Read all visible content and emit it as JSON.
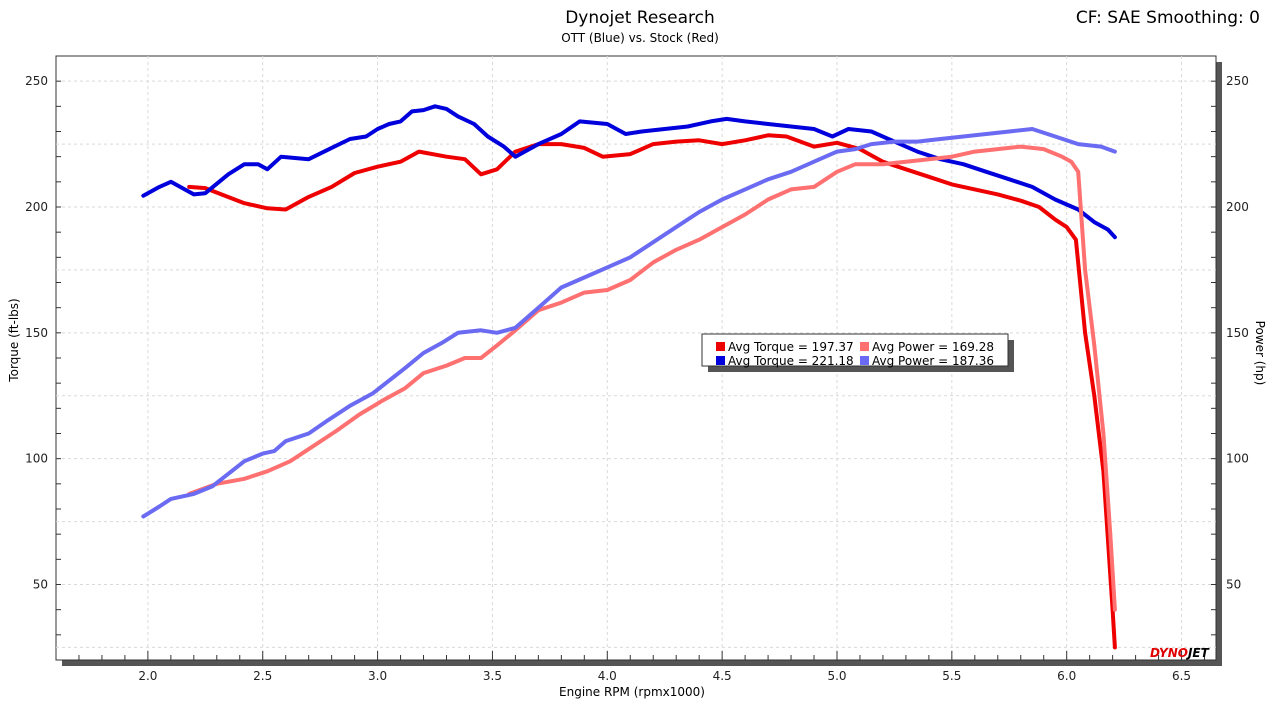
{
  "header": {
    "title": "Dynojet Research",
    "subtitle": "OTT (Blue) vs. Stock (Red)",
    "cf_label": "CF: SAE Smoothing: 0"
  },
  "brand": {
    "dyno": "DYNO",
    "jet": "JET",
    "dyno_color": "#e00000",
    "jet_color": "#000000"
  },
  "chart_data": {
    "type": "line",
    "title": "Dynojet Research",
    "subtitle": "OTT (Blue) vs. Stock (Red)",
    "xlabel": "Engine RPM (rpmx1000)",
    "ylabel": "Torque (ft-lbs)",
    "y2label": "Power (hp)",
    "xlim": [
      1.6,
      6.65
    ],
    "ylim": [
      20,
      260
    ],
    "y2lim": [
      20,
      260
    ],
    "xticks": [
      "2.0",
      "2.5",
      "3.0",
      "3.5",
      "4.0",
      "4.5",
      "5.0",
      "5.5",
      "6.0",
      "6.5"
    ],
    "yticks": [
      "50",
      "100",
      "150",
      "200",
      "250"
    ],
    "grid": true,
    "legend_position": "center-right",
    "series": [
      {
        "name": "Avg Torque = 197.37",
        "color": "#ee0000",
        "axis": "left",
        "points": [
          [
            2.18,
            208
          ],
          [
            2.25,
            207.5
          ],
          [
            2.32,
            205
          ],
          [
            2.42,
            201.5
          ],
          [
            2.52,
            199.5
          ],
          [
            2.6,
            199
          ],
          [
            2.7,
            204
          ],
          [
            2.8,
            208
          ],
          [
            2.9,
            213.5
          ],
          [
            3.0,
            216
          ],
          [
            3.1,
            218
          ],
          [
            3.18,
            222
          ],
          [
            3.3,
            220
          ],
          [
            3.38,
            219
          ],
          [
            3.45,
            213
          ],
          [
            3.52,
            215
          ],
          [
            3.6,
            222
          ],
          [
            3.7,
            225
          ],
          [
            3.8,
            225
          ],
          [
            3.9,
            223.5
          ],
          [
            3.98,
            220
          ],
          [
            4.1,
            221
          ],
          [
            4.2,
            225
          ],
          [
            4.3,
            226
          ],
          [
            4.4,
            226.5
          ],
          [
            4.5,
            225
          ],
          [
            4.6,
            226.5
          ],
          [
            4.7,
            228.5
          ],
          [
            4.78,
            228
          ],
          [
            4.9,
            224
          ],
          [
            5.0,
            225.5
          ],
          [
            5.1,
            223
          ],
          [
            5.2,
            218
          ],
          [
            5.3,
            215
          ],
          [
            5.4,
            212
          ],
          [
            5.5,
            209
          ],
          [
            5.6,
            207
          ],
          [
            5.7,
            205
          ],
          [
            5.8,
            202.5
          ],
          [
            5.88,
            200
          ],
          [
            5.95,
            195
          ],
          [
            6.0,
            192
          ],
          [
            6.04,
            187
          ],
          [
            6.08,
            150
          ],
          [
            6.12,
            125
          ],
          [
            6.16,
            95
          ],
          [
            6.2,
            40
          ],
          [
            6.21,
            25
          ]
        ]
      },
      {
        "name": "Avg Torque = 221.18",
        "color": "#0000dd",
        "axis": "left",
        "points": [
          [
            1.98,
            204.5
          ],
          [
            2.05,
            208
          ],
          [
            2.1,
            210
          ],
          [
            2.2,
            205
          ],
          [
            2.25,
            205.5
          ],
          [
            2.35,
            213
          ],
          [
            2.42,
            217
          ],
          [
            2.48,
            217
          ],
          [
            2.52,
            215
          ],
          [
            2.58,
            220
          ],
          [
            2.7,
            219
          ],
          [
            2.8,
            223.5
          ],
          [
            2.88,
            227
          ],
          [
            2.95,
            228
          ],
          [
            3.0,
            231
          ],
          [
            3.05,
            233
          ],
          [
            3.1,
            234
          ],
          [
            3.15,
            238
          ],
          [
            3.2,
            238.5
          ],
          [
            3.25,
            240
          ],
          [
            3.3,
            239
          ],
          [
            3.35,
            236
          ],
          [
            3.42,
            233
          ],
          [
            3.48,
            228
          ],
          [
            3.55,
            224
          ],
          [
            3.6,
            220
          ],
          [
            3.7,
            225
          ],
          [
            3.8,
            229
          ],
          [
            3.88,
            234
          ],
          [
            4.0,
            233
          ],
          [
            4.08,
            229
          ],
          [
            4.15,
            230
          ],
          [
            4.25,
            231
          ],
          [
            4.35,
            232
          ],
          [
            4.45,
            234
          ],
          [
            4.52,
            235
          ],
          [
            4.6,
            234
          ],
          [
            4.7,
            233
          ],
          [
            4.8,
            232
          ],
          [
            4.9,
            231
          ],
          [
            4.98,
            228
          ],
          [
            5.05,
            231
          ],
          [
            5.15,
            230
          ],
          [
            5.25,
            226
          ],
          [
            5.35,
            222
          ],
          [
            5.45,
            219
          ],
          [
            5.55,
            217
          ],
          [
            5.65,
            214
          ],
          [
            5.75,
            211
          ],
          [
            5.85,
            208
          ],
          [
            5.95,
            203
          ],
          [
            6.05,
            199
          ],
          [
            6.12,
            194
          ],
          [
            6.18,
            191
          ],
          [
            6.21,
            188
          ]
        ]
      },
      {
        "name": "Avg Power = 169.28",
        "color": "#ff7070",
        "axis": "right",
        "points": [
          [
            2.18,
            86
          ],
          [
            2.3,
            90
          ],
          [
            2.42,
            92
          ],
          [
            2.52,
            95
          ],
          [
            2.62,
            99
          ],
          [
            2.72,
            105
          ],
          [
            2.82,
            111
          ],
          [
            2.92,
            117.5
          ],
          [
            3.02,
            123
          ],
          [
            3.12,
            128
          ],
          [
            3.2,
            134
          ],
          [
            3.3,
            137
          ],
          [
            3.38,
            140
          ],
          [
            3.45,
            140
          ],
          [
            3.52,
            145
          ],
          [
            3.6,
            151
          ],
          [
            3.7,
            159
          ],
          [
            3.8,
            162
          ],
          [
            3.9,
            166
          ],
          [
            4.0,
            167
          ],
          [
            4.1,
            171
          ],
          [
            4.2,
            178
          ],
          [
            4.3,
            183
          ],
          [
            4.4,
            187
          ],
          [
            4.5,
            192
          ],
          [
            4.6,
            197
          ],
          [
            4.7,
            203
          ],
          [
            4.8,
            207
          ],
          [
            4.9,
            208
          ],
          [
            5.0,
            214
          ],
          [
            5.08,
            217
          ],
          [
            5.2,
            217
          ],
          [
            5.3,
            218
          ],
          [
            5.4,
            219
          ],
          [
            5.5,
            220
          ],
          [
            5.6,
            222
          ],
          [
            5.7,
            223
          ],
          [
            5.8,
            224
          ],
          [
            5.9,
            223
          ],
          [
            5.98,
            220
          ],
          [
            6.02,
            218
          ],
          [
            6.05,
            214
          ],
          [
            6.08,
            175
          ],
          [
            6.12,
            145
          ],
          [
            6.16,
            110
          ],
          [
            6.19,
            70
          ],
          [
            6.21,
            40
          ]
        ]
      },
      {
        "name": "Avg Power = 187.36",
        "color": "#6a6af2",
        "axis": "right",
        "points": [
          [
            1.98,
            77
          ],
          [
            2.05,
            81
          ],
          [
            2.1,
            84
          ],
          [
            2.2,
            86
          ],
          [
            2.28,
            89
          ],
          [
            2.35,
            94
          ],
          [
            2.42,
            99
          ],
          [
            2.5,
            102
          ],
          [
            2.55,
            103
          ],
          [
            2.6,
            107
          ],
          [
            2.7,
            110
          ],
          [
            2.78,
            115
          ],
          [
            2.88,
            121
          ],
          [
            2.98,
            126
          ],
          [
            3.05,
            131
          ],
          [
            3.12,
            136
          ],
          [
            3.2,
            142
          ],
          [
            3.28,
            146
          ],
          [
            3.35,
            150
          ],
          [
            3.45,
            151
          ],
          [
            3.52,
            150
          ],
          [
            3.6,
            152
          ],
          [
            3.7,
            160
          ],
          [
            3.8,
            168
          ],
          [
            3.9,
            172
          ],
          [
            4.0,
            176
          ],
          [
            4.1,
            180
          ],
          [
            4.2,
            186
          ],
          [
            4.3,
            192
          ],
          [
            4.4,
            198
          ],
          [
            4.5,
            203
          ],
          [
            4.6,
            207
          ],
          [
            4.7,
            211
          ],
          [
            4.8,
            214
          ],
          [
            4.9,
            218
          ],
          [
            5.0,
            222
          ],
          [
            5.08,
            223
          ],
          [
            5.15,
            225
          ],
          [
            5.25,
            226
          ],
          [
            5.35,
            226
          ],
          [
            5.45,
            227
          ],
          [
            5.55,
            228
          ],
          [
            5.65,
            229
          ],
          [
            5.75,
            230
          ],
          [
            5.85,
            231
          ],
          [
            5.95,
            228
          ],
          [
            6.05,
            225
          ],
          [
            6.15,
            224
          ],
          [
            6.21,
            222
          ]
        ]
      }
    ]
  }
}
